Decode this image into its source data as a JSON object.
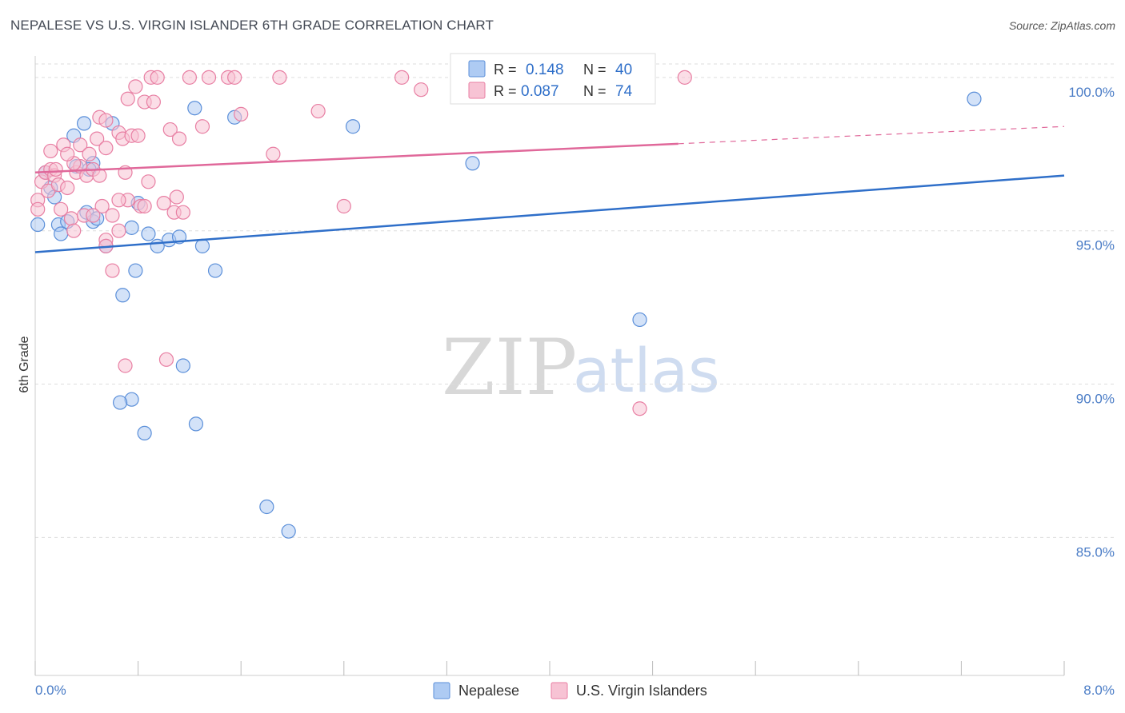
{
  "title": "NEPALESE VS U.S. VIRGIN ISLANDER 6TH GRADE CORRELATION CHART",
  "source": "Source: ZipAtlas.com",
  "watermark": {
    "zip": "ZIP",
    "atlas": "atlas"
  },
  "colors": {
    "blue": "#5b8fd9",
    "blue_fill": "#aecbf3",
    "blue_line": "#2f6fc9",
    "pink": "#e87fa3",
    "pink_fill": "#f7c3d4",
    "pink_line": "#e0689a",
    "grid": "#dddddd",
    "tick_text": "#4a7cc6"
  },
  "legend": {
    "r_label": "R =",
    "n_label": "N =",
    "blue": {
      "r": "0.148",
      "n": "40"
    },
    "pink": {
      "r": "0.087",
      "n": "74"
    }
  },
  "chart_data": {
    "type": "scatter",
    "title": "NEPALESE VS U.S. VIRGIN ISLANDER 6TH GRADE CORRELATION CHART",
    "xlabel": "",
    "ylabel": "6th Grade",
    "xlim": [
      0.0,
      8.0
    ],
    "ylim": [
      80.5,
      100.7
    ],
    "x_tick_labels": [
      "0.0%",
      "8.0%"
    ],
    "y_ticks": [
      85.0,
      90.0,
      95.0,
      100.0
    ],
    "y_tick_labels": [
      "85.0%",
      "90.0%",
      "95.0%",
      "100.0%"
    ],
    "series": [
      {
        "name": "Nepalese",
        "color": "blue",
        "trend": {
          "x": [
            0.0,
            8.0
          ],
          "y": [
            94.3,
            96.8
          ],
          "dashed_from": null
        },
        "points": [
          [
            0.02,
            95.2
          ],
          [
            0.08,
            96.9
          ],
          [
            0.12,
            96.4
          ],
          [
            0.15,
            96.1
          ],
          [
            0.18,
            95.2
          ],
          [
            0.2,
            94.9
          ],
          [
            0.25,
            95.3
          ],
          [
            0.3,
            98.1
          ],
          [
            0.32,
            97.1
          ],
          [
            0.38,
            98.5
          ],
          [
            0.4,
            95.6
          ],
          [
            0.45,
            97.2
          ],
          [
            0.45,
            95.3
          ],
          [
            0.48,
            95.4
          ],
          [
            0.55,
            94.5
          ],
          [
            0.6,
            98.5
          ],
          [
            0.68,
            92.9
          ],
          [
            0.75,
            89.5
          ],
          [
            0.75,
            95.1
          ],
          [
            0.78,
            93.7
          ],
          [
            0.8,
            95.9
          ],
          [
            0.85,
            88.4
          ],
          [
            0.88,
            94.9
          ],
          [
            0.95,
            94.5
          ],
          [
            1.04,
            94.7
          ],
          [
            1.12,
            94.8
          ],
          [
            1.15,
            90.6
          ],
          [
            1.24,
            99.0
          ],
          [
            1.25,
            88.7
          ],
          [
            1.3,
            94.5
          ],
          [
            1.4,
            93.7
          ],
          [
            1.55,
            98.7
          ],
          [
            1.8,
            86.0
          ],
          [
            1.97,
            85.2
          ],
          [
            2.47,
            98.4
          ],
          [
            3.4,
            97.2
          ],
          [
            4.7,
            92.1
          ],
          [
            7.3,
            99.3
          ],
          [
            0.66,
            89.4
          ],
          [
            0.42,
            97.0
          ]
        ]
      },
      {
        "name": "U.S. Virgin Islanders",
        "color": "pink",
        "trend": {
          "x": [
            0.0,
            8.0
          ],
          "y": [
            96.9,
            98.4
          ],
          "dashed_from": 5.0
        },
        "points": [
          [
            0.02,
            96.0
          ],
          [
            0.02,
            95.7
          ],
          [
            0.05,
            96.6
          ],
          [
            0.08,
            96.9
          ],
          [
            0.1,
            96.3
          ],
          [
            0.12,
            97.0
          ],
          [
            0.12,
            97.6
          ],
          [
            0.15,
            96.8
          ],
          [
            0.18,
            96.5
          ],
          [
            0.2,
            95.7
          ],
          [
            0.22,
            97.8
          ],
          [
            0.25,
            96.4
          ],
          [
            0.28,
            95.4
          ],
          [
            0.3,
            95.0
          ],
          [
            0.32,
            96.9
          ],
          [
            0.35,
            97.1
          ],
          [
            0.35,
            97.8
          ],
          [
            0.38,
            95.5
          ],
          [
            0.4,
            96.8
          ],
          [
            0.42,
            97.5
          ],
          [
            0.45,
            97.0
          ],
          [
            0.48,
            98.0
          ],
          [
            0.5,
            96.8
          ],
          [
            0.5,
            98.7
          ],
          [
            0.52,
            95.8
          ],
          [
            0.55,
            98.6
          ],
          [
            0.55,
            94.7
          ],
          [
            0.55,
            97.7
          ],
          [
            0.6,
            95.5
          ],
          [
            0.6,
            93.7
          ],
          [
            0.65,
            98.2
          ],
          [
            0.65,
            95.0
          ],
          [
            0.68,
            98.0
          ],
          [
            0.7,
            96.9
          ],
          [
            0.7,
            90.6
          ],
          [
            0.72,
            99.3
          ],
          [
            0.72,
            96.0
          ],
          [
            0.75,
            98.1
          ],
          [
            0.78,
            99.7
          ],
          [
            0.8,
            98.1
          ],
          [
            0.82,
            95.8
          ],
          [
            0.85,
            99.2
          ],
          [
            0.88,
            96.6
          ],
          [
            0.9,
            100.0
          ],
          [
            0.92,
            99.2
          ],
          [
            0.95,
            100.0
          ],
          [
            1.0,
            95.9
          ],
          [
            1.02,
            90.8
          ],
          [
            1.05,
            98.3
          ],
          [
            1.08,
            95.6
          ],
          [
            1.1,
            96.1
          ],
          [
            1.12,
            98.0
          ],
          [
            1.15,
            95.6
          ],
          [
            1.2,
            100.0
          ],
          [
            1.3,
            98.4
          ],
          [
            1.35,
            100.0
          ],
          [
            1.5,
            100.0
          ],
          [
            1.55,
            100.0
          ],
          [
            1.6,
            98.8
          ],
          [
            1.85,
            97.5
          ],
          [
            1.9,
            100.0
          ],
          [
            2.2,
            98.9
          ],
          [
            2.4,
            95.8
          ],
          [
            2.85,
            100.0
          ],
          [
            3.0,
            99.6
          ],
          [
            4.7,
            89.2
          ],
          [
            5.05,
            100.0
          ],
          [
            0.55,
            94.5
          ],
          [
            0.3,
            97.2
          ],
          [
            0.16,
            97.0
          ],
          [
            0.45,
            95.5
          ],
          [
            0.65,
            96.0
          ],
          [
            0.85,
            95.8
          ],
          [
            0.25,
            97.5
          ]
        ]
      }
    ]
  }
}
